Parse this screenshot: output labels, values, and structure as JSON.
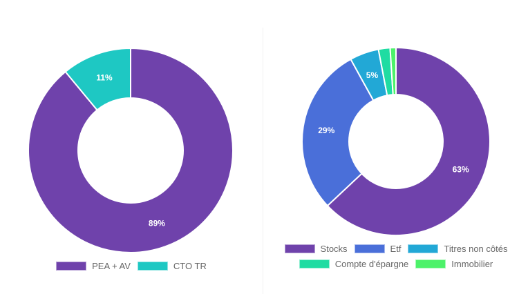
{
  "chart_data": [
    {
      "type": "pie",
      "variant": "doughnut",
      "categories": [
        "PEA + AV",
        "CTO TR"
      ],
      "values": [
        89,
        11
      ],
      "labels": [
        "89%",
        "11%"
      ],
      "colors": [
        "#6f42ab",
        "#1ec8c3"
      ],
      "legend": "bottom"
    },
    {
      "type": "pie",
      "variant": "doughnut",
      "categories": [
        "Stocks",
        "Etf",
        "Titres non côtés",
        "Compte d'épargne",
        "Immobilier"
      ],
      "values": [
        63,
        29,
        5,
        2,
        1
      ],
      "labels": [
        "63%",
        "29%",
        "5%",
        "",
        ""
      ],
      "colors": [
        "#6f42ab",
        "#4a6fd9",
        "#22a8d6",
        "#1fdca2",
        "#4df26a"
      ],
      "legend": "bottom"
    }
  ]
}
